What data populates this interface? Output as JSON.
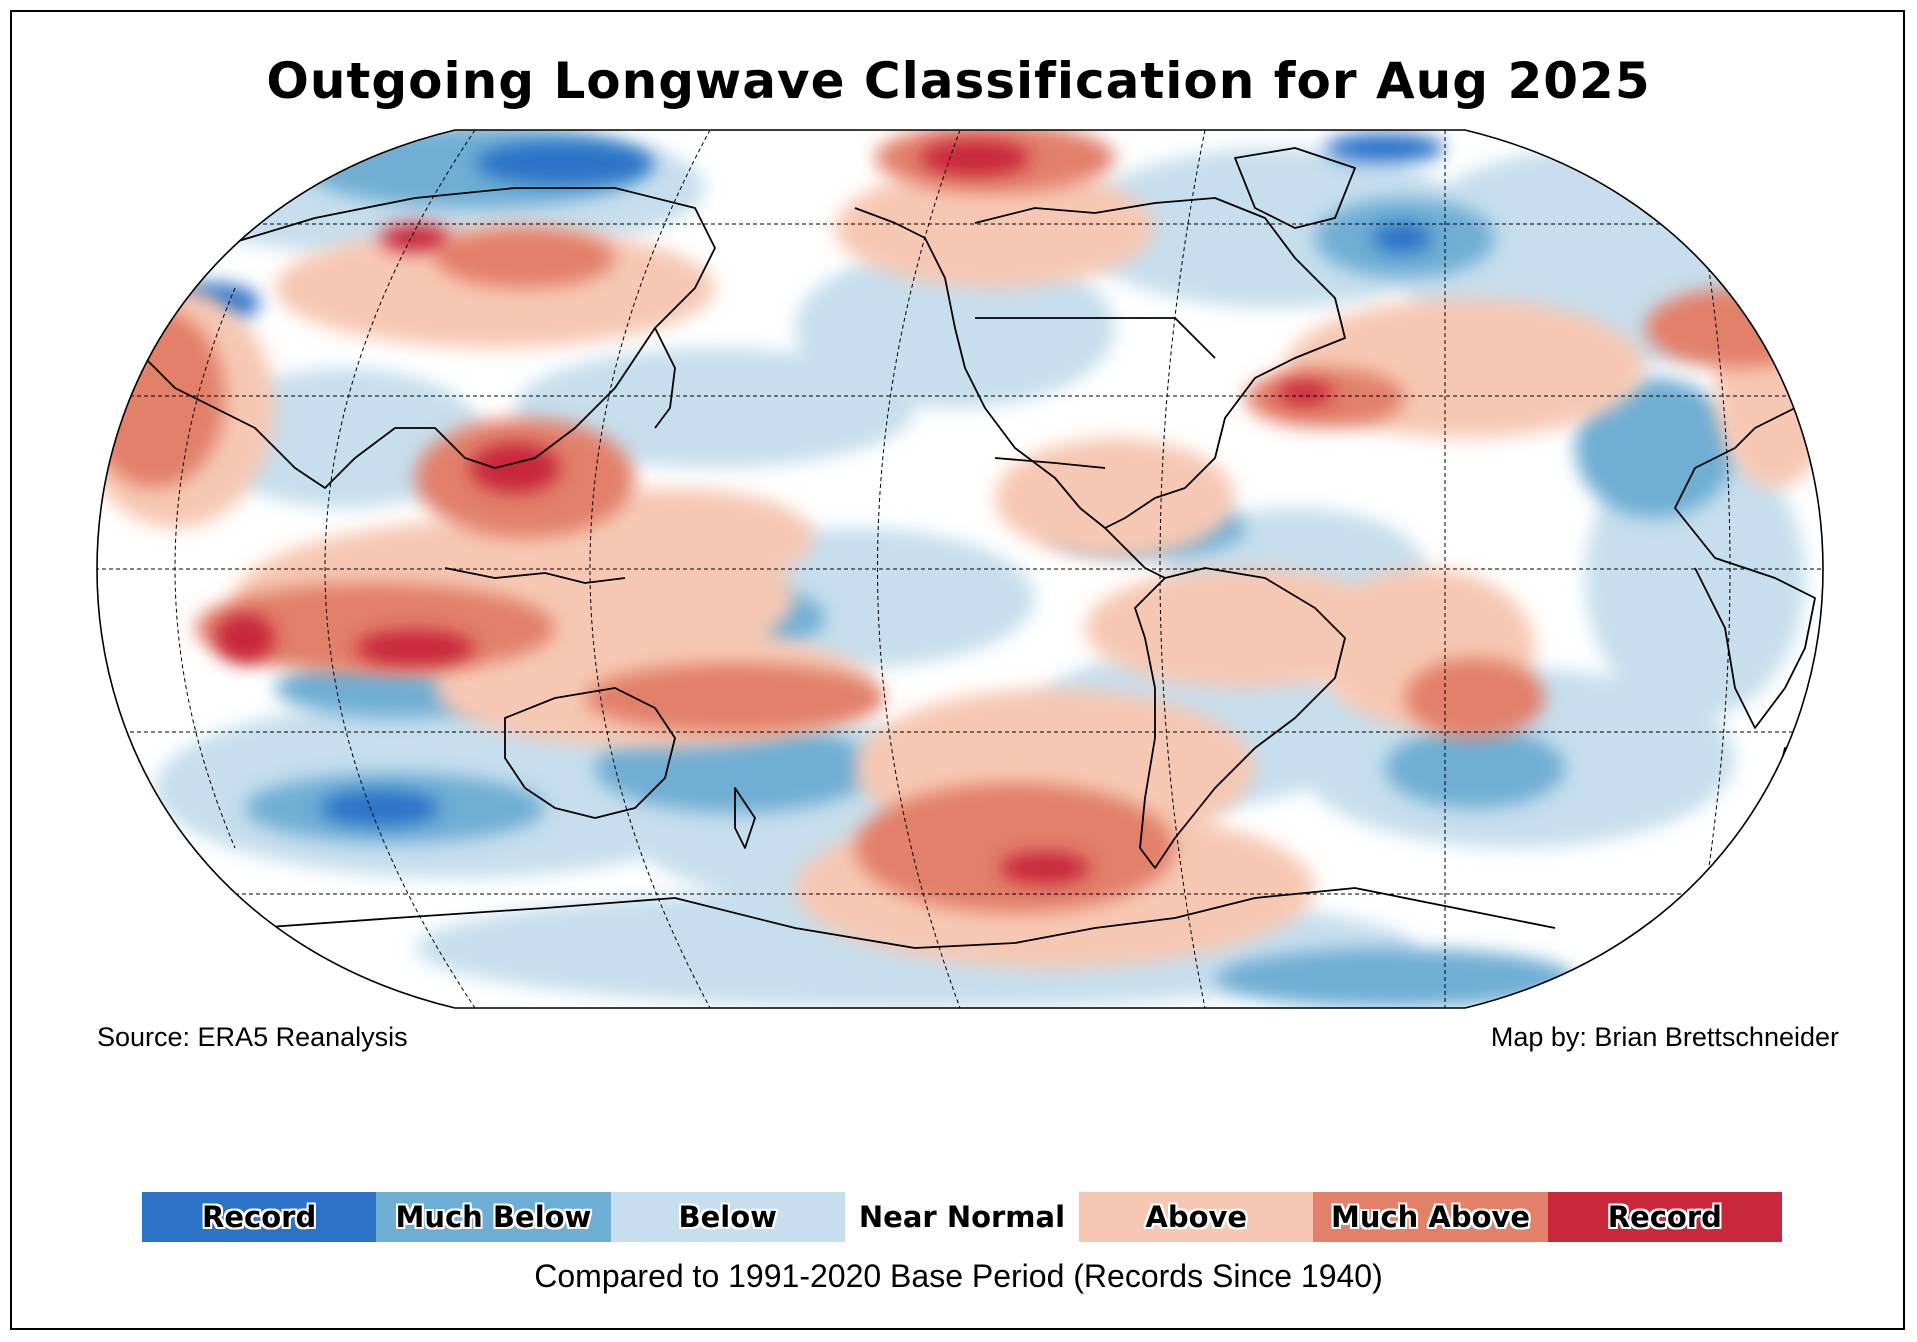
{
  "title": "Outgoing Longwave Classification for Aug 2025",
  "source": "Source: ERA5 Reanalysis",
  "credit": "Map by: Brian Brettschneider",
  "caption": "Compared to 1991-2020 Base Period   (Records Since 1940)",
  "legend": [
    {
      "label": "Record",
      "color": "#2c72c7"
    },
    {
      "label": "Much Below",
      "color": "#6faed4"
    },
    {
      "label": "Below",
      "color": "#c6deed"
    },
    {
      "label": "Near Normal",
      "color": "#ffffff"
    },
    {
      "label": "Above",
      "color": "#f6c8b3"
    },
    {
      "label": "Much Above",
      "color": "#e2806a"
    },
    {
      "label": "Record",
      "color": "#c8283a"
    }
  ],
  "colors": {
    "record_low": "#2c72c7",
    "much_below": "#6faed4",
    "below": "#c6deed",
    "near_normal": "#ffffff",
    "above": "#f6c8b3",
    "much_above": "#e2806a",
    "record_high": "#c8283a"
  }
}
